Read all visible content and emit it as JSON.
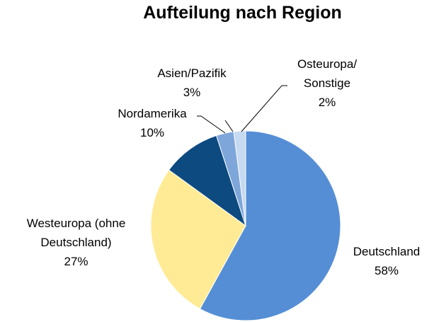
{
  "chart_data": {
    "type": "pie",
    "title": "Aufteilung nach Region",
    "categories": [
      "Deutschland",
      "Westeuropa (ohne Deutschland)",
      "Nordamerika",
      "Asien/Pazifik",
      "Osteuropa/ Sonstige"
    ],
    "values": [
      58,
      27,
      10,
      3,
      2
    ],
    "value_labels": [
      "58%",
      "27%",
      "10%",
      "3%",
      "2%"
    ],
    "colors": [
      "#558ed5",
      "#ffeb95",
      "#0d4a80",
      "#7ea6da",
      "#c5d9f1"
    ]
  }
}
